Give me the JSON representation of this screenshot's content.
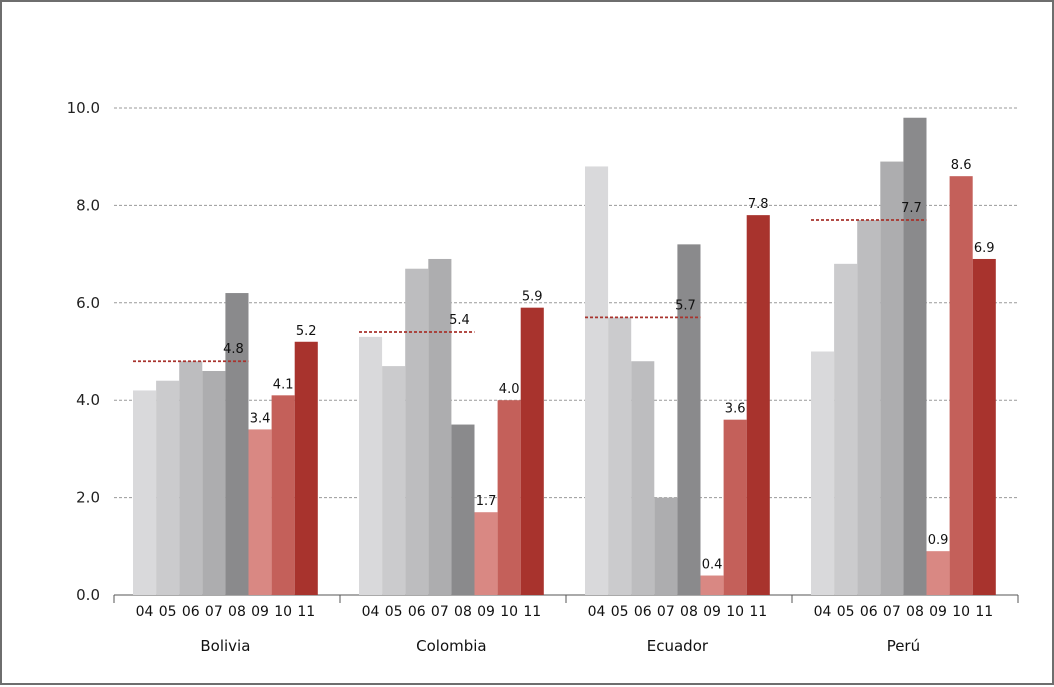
{
  "chart_data": {
    "type": "bar",
    "title": "",
    "xlabel": "",
    "ylabel": "",
    "ylim": [
      0,
      10
    ],
    "yticks": [
      "0.0",
      "2.0",
      "4.0",
      "6.0",
      "8.0",
      "10.0"
    ],
    "grid": true,
    "years": [
      "04",
      "05",
      "06",
      "07",
      "08",
      "09",
      "10",
      "11"
    ],
    "groups": [
      {
        "name": "Bolivia",
        "values": [
          4.2,
          4.4,
          4.8,
          4.6,
          6.2,
          3.4,
          4.1,
          5.2
        ],
        "average": 4.8
      },
      {
        "name": "Colombia",
        "values": [
          5.3,
          4.7,
          6.7,
          6.9,
          3.5,
          1.7,
          4.0,
          5.9
        ],
        "average": 5.4
      },
      {
        "name": "Ecuador",
        "values": [
          8.8,
          5.7,
          4.8,
          2.0,
          7.2,
          0.4,
          3.6,
          7.8
        ],
        "average": 5.7
      },
      {
        "name": "Perú",
        "values": [
          5.0,
          6.8,
          7.7,
          8.9,
          9.8,
          0.9,
          8.6,
          6.9
        ],
        "average": 7.7
      }
    ],
    "labeled_years": [
      "09",
      "10",
      "11"
    ],
    "colors": {
      "grays": [
        "#d9d9db",
        "#cbcbcd",
        "#bdbdbf",
        "#adadaf",
        "#8a8a8c"
      ],
      "reds": [
        "#d98883",
        "#c4605a",
        "#a8332d"
      ],
      "average_line": "#a8332d",
      "grid": "#9a9a9a",
      "axis": "#555555"
    }
  }
}
